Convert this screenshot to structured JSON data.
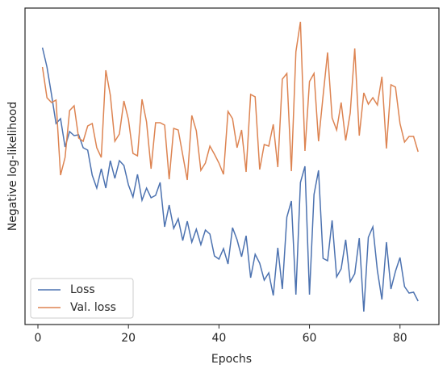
{
  "chart_data": {
    "type": "line",
    "xlabel": "Epochs",
    "ylabel": "Negative log-likelihood",
    "x": [
      1,
      2,
      3,
      4,
      5,
      6,
      7,
      8,
      9,
      10,
      11,
      12,
      13,
      14,
      15,
      16,
      17,
      18,
      19,
      20,
      21,
      22,
      23,
      24,
      25,
      26,
      27,
      28,
      29,
      30,
      31,
      32,
      33,
      34,
      35,
      36,
      37,
      38,
      39,
      40,
      41,
      42,
      43,
      44,
      45,
      46,
      47,
      48,
      49,
      50,
      51,
      52,
      53,
      54,
      55,
      56,
      57,
      58,
      59,
      60,
      61,
      62,
      63,
      64,
      65,
      66,
      67,
      68,
      69,
      70,
      71,
      72,
      73,
      74,
      75,
      76,
      77,
      78,
      79,
      80,
      81,
      82,
      83,
      84
    ],
    "series": [
      {
        "name": "Loss",
        "color": "#4c72b0",
        "values": [
          343,
          319,
          285,
          249,
          255,
          220,
          239,
          234,
          235,
          219,
          216,
          185,
          169,
          193,
          169,
          203,
          181,
          203,
          197,
          173,
          158,
          186,
          154,
          169,
          157,
          160,
          176,
          121,
          148,
          119,
          131,
          104,
          128,
          102,
          118,
          99,
          117,
          112,
          85,
          81,
          94,
          75,
          120,
          105,
          84,
          110,
          58,
          87,
          76,
          55,
          64,
          36,
          95,
          44,
          133,
          153,
          37,
          176,
          196,
          37,
          161,
          191,
          82,
          79,
          129,
          59,
          69,
          105,
          53,
          63,
          107,
          16,
          108,
          121,
          67,
          31,
          102,
          44,
          66,
          83,
          47,
          39,
          40,
          29
        ]
      },
      {
        "name": "Val. loss",
        "color": "#dd8452",
        "values": [
          319,
          281,
          275,
          278,
          185,
          207,
          265,
          271,
          231,
          227,
          246,
          249,
          219,
          207,
          315,
          284,
          227,
          236,
          277,
          254,
          212,
          209,
          279,
          251,
          193,
          250,
          250,
          247,
          180,
          243,
          241,
          210,
          179,
          259,
          240,
          191,
          200,
          221,
          211,
          200,
          186,
          264,
          255,
          219,
          241,
          189,
          285,
          282,
          192,
          223,
          221,
          248,
          195,
          304,
          311,
          190,
          338,
          375,
          215,
          301,
          311,
          227,
          283,
          337,
          256,
          241,
          275,
          228,
          262,
          342,
          234,
          287,
          273,
          281,
          272,
          307,
          218,
          297,
          294,
          249,
          226,
          233,
          233,
          214
        ]
      }
    ],
    "xlim": [
      -2.85,
      88.6
    ],
    "xticks": [
      0,
      20,
      40,
      60,
      80
    ],
    "ylim": [
      0,
      392
    ],
    "legend": "lower left"
  }
}
